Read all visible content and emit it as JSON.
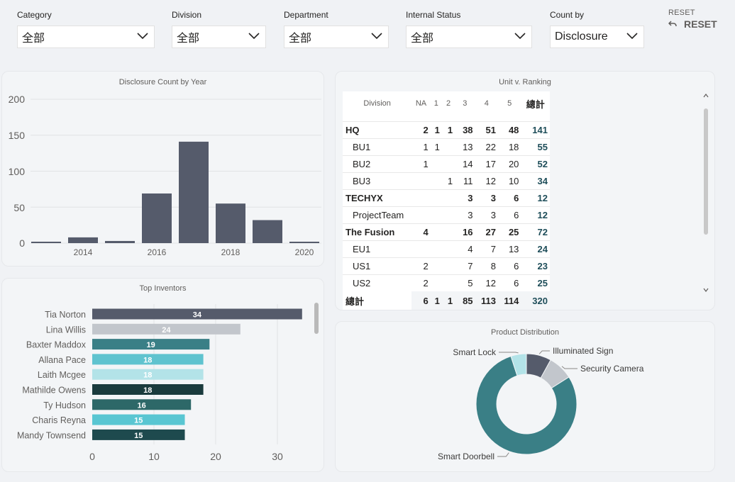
{
  "filters": [
    {
      "label": "Category",
      "value": "全部"
    },
    {
      "label": "Division",
      "value": "全部"
    },
    {
      "label": "Department",
      "value": "全部"
    },
    {
      "label": "Internal Status",
      "value": "全部"
    },
    {
      "label": "Count by",
      "value": "Disclosure"
    }
  ],
  "reset": {
    "tooltip": "RESET",
    "label": "RESET"
  },
  "year_chart": {
    "title": "Disclosure Count by Year",
    "y_ticks": [
      "200",
      "150",
      "100",
      "50",
      "0"
    ],
    "x_ticks": [
      "2014",
      "2016",
      "2018",
      "2020"
    ]
  },
  "unit_ranking": {
    "title": "Unit v. Ranking",
    "headers": [
      "Division",
      "NA",
      "1",
      "2",
      "3",
      "4",
      "5",
      "總計"
    ],
    "rows": [
      {
        "name": "HQ",
        "level": "parent",
        "cells": [
          "2",
          "1",
          "1",
          "38",
          "51",
          "48"
        ],
        "total": "141"
      },
      {
        "name": "BU1",
        "level": "child",
        "cells": [
          "1",
          "1",
          "",
          "13",
          "22",
          "18"
        ],
        "total": "55"
      },
      {
        "name": "BU2",
        "level": "child",
        "cells": [
          "1",
          "",
          "",
          "14",
          "17",
          "20"
        ],
        "total": "52"
      },
      {
        "name": "BU3",
        "level": "child",
        "cells": [
          "",
          "",
          "1",
          "11",
          "12",
          "10"
        ],
        "total": "34"
      },
      {
        "name": "TECHYX",
        "level": "parent",
        "cells": [
          "",
          "",
          "",
          "3",
          "3",
          "6"
        ],
        "total": "12"
      },
      {
        "name": "ProjectTeam",
        "level": "child",
        "cells": [
          "",
          "",
          "",
          "3",
          "3",
          "6"
        ],
        "total": "12"
      },
      {
        "name": "The Fusion",
        "level": "parent",
        "cells": [
          "4",
          "",
          "",
          "16",
          "27",
          "25"
        ],
        "total": "72"
      },
      {
        "name": "EU1",
        "level": "child",
        "cells": [
          "",
          "",
          "",
          "4",
          "7",
          "13"
        ],
        "total": "24"
      },
      {
        "name": "US1",
        "level": "child",
        "cells": [
          "2",
          "",
          "",
          "7",
          "8",
          "6"
        ],
        "total": "23"
      },
      {
        "name": "US2",
        "level": "child",
        "cells": [
          "2",
          "",
          "",
          "5",
          "12",
          "6"
        ],
        "total": "25"
      }
    ],
    "grand_total": {
      "name": "總計",
      "cells": [
        "6",
        "1",
        "1",
        "85",
        "113",
        "114"
      ],
      "total": "320"
    }
  },
  "inventors_chart": {
    "title": "Top Inventors",
    "x_ticks": [
      "0",
      "10",
      "20",
      "30"
    ]
  },
  "product_chart": {
    "title": "Product Distribution"
  },
  "colors": {
    "slate": "#555b6b",
    "light_gray": "#c2c6cc",
    "teal": "#3a7f86",
    "light_teal": "#5fc3cf",
    "pale_teal": "#b3e3e8",
    "dark_teal": "#1a3b3d",
    "mid_teal": "#2d6868",
    "cyan": "#59c6d2",
    "deep_teal": "#1e4a4e"
  },
  "chart_data": [
    {
      "type": "bar",
      "title": "Disclosure Count by Year",
      "categories": [
        "2013",
        "2014",
        "2015",
        "2016",
        "2017",
        "2018",
        "2019",
        "2020"
      ],
      "values": [
        2,
        8,
        3,
        69,
        141,
        55,
        32,
        2
      ],
      "ylim": [
        0,
        200
      ],
      "grid": true
    },
    {
      "type": "bar",
      "orientation": "horizontal",
      "title": "Top Inventors",
      "categories": [
        "Tia Norton",
        "Lina Willis",
        "Baxter Maddox",
        "Allana Pace",
        "Laith Mcgee",
        "Mathilde Owens",
        "Ty Hudson",
        "Charis Reyna",
        "Mandy Townsend"
      ],
      "values": [
        34,
        24,
        19,
        18,
        18,
        18,
        16,
        15,
        15
      ],
      "colors": [
        "#555b6b",
        "#c2c6cc",
        "#3a7f86",
        "#5fc3cf",
        "#b3e3e8",
        "#1a3b3d",
        "#2d6868",
        "#59c6d2",
        "#1e4a4e"
      ],
      "xlim": [
        0,
        35
      ],
      "grid": true
    },
    {
      "type": "pie",
      "variant": "donut",
      "title": "Product Distribution",
      "labels": [
        "Illuminated Sign",
        "Security Camera",
        "Smart Doorbell",
        "Smart Lock"
      ],
      "values": [
        8,
        8,
        79,
        5
      ],
      "colors": [
        "#555b6b",
        "#c2c6cc",
        "#3a7f86",
        "#b3e3e8"
      ]
    }
  ]
}
